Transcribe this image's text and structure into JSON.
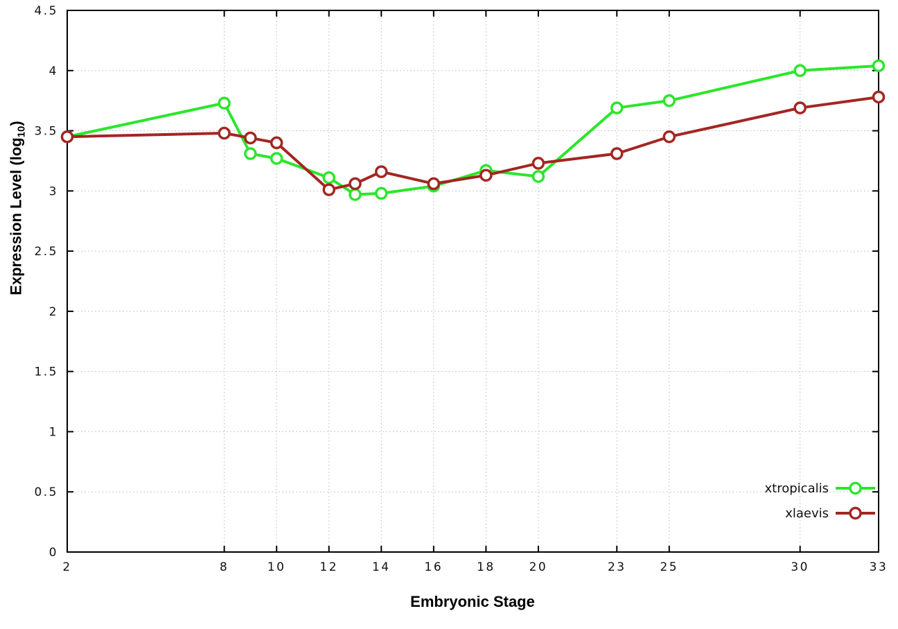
{
  "chart_data": {
    "type": "line",
    "title": "",
    "xlabel": "Embryonic Stage",
    "ylabel": "Expression Level (log10)",
    "ylabel_parts": {
      "prefix": "Expression Level (log",
      "sub": "10",
      "suffix": ")"
    },
    "xlim": [
      2,
      33
    ],
    "ylim": [
      0,
      4.5
    ],
    "x_ticks": [
      2,
      8,
      10,
      12,
      14,
      16,
      18,
      20,
      23,
      25,
      30,
      33
    ],
    "y_ticks": [
      0,
      0.5,
      1,
      1.5,
      2,
      2.5,
      3,
      3.5,
      4,
      4.5
    ],
    "grid": true,
    "legend_position": "bottom-right",
    "x": [
      2,
      8,
      9,
      10,
      12,
      13,
      14,
      16,
      18,
      20,
      23,
      25,
      30,
      33
    ],
    "series": [
      {
        "name": "xtropicalis",
        "color": "#2be62b",
        "values": [
          3.45,
          3.73,
          3.31,
          3.27,
          3.11,
          2.97,
          2.98,
          3.04,
          3.17,
          3.12,
          3.69,
          3.75,
          4.0,
          4.04
        ]
      },
      {
        "name": "xlaevis",
        "color": "#a32622",
        "values": [
          3.45,
          3.48,
          3.44,
          3.4,
          3.01,
          3.06,
          3.16,
          3.06,
          3.13,
          3.23,
          3.31,
          3.45,
          3.69,
          3.78
        ]
      }
    ]
  }
}
